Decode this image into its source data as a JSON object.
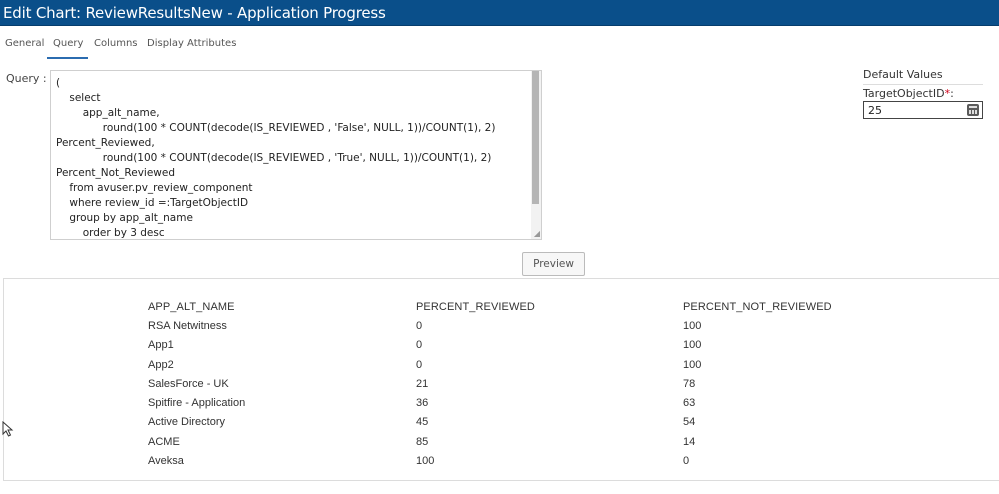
{
  "window": {
    "title": "Edit Chart: ReviewResultsNew - Application Progress"
  },
  "tabs": [
    {
      "label": "General"
    },
    {
      "label": "Query",
      "active": true
    },
    {
      "label": "Columns"
    },
    {
      "label": "Display Attributes"
    }
  ],
  "query": {
    "label": "Query :",
    "text": "(\n    select\n        app_alt_name,\n              round(100 * COUNT(decode(IS_REVIEWED , 'False', NULL, 1))/COUNT(1), 2)\nPercent_Reviewed,\n              round(100 * COUNT(decode(IS_REVIEWED , 'True', NULL, 1))/COUNT(1), 2)\nPercent_Not_Reviewed\n    from avuser.pv_review_component\n    where review_id =:TargetObjectID\n    group by app_alt_name\n        order by 3 desc"
  },
  "defaults": {
    "title": "Default Values",
    "param_label": "TargetObjectID",
    "param_required_mark": "*",
    "param_suffix": ":",
    "param_value": "25"
  },
  "preview_button": "Preview",
  "results": {
    "columns": [
      "APP_ALT_NAME",
      "PERCENT_REVIEWED",
      "PERCENT_NOT_REVIEWED"
    ],
    "rows": [
      [
        "RSA Netwitness",
        "0",
        "100"
      ],
      [
        "App1",
        "0",
        "100"
      ],
      [
        "App2",
        "0",
        "100"
      ],
      [
        "SalesForce - UK",
        "21",
        "78"
      ],
      [
        "Spitfire - Application",
        "36",
        "63"
      ],
      [
        "Active Directory",
        "45",
        "54"
      ],
      [
        "ACME",
        "85",
        "14"
      ],
      [
        "Aveksa",
        "100",
        "0"
      ]
    ]
  },
  "colors": {
    "titlebar": "#0a4f8a",
    "accent": "#2b6cb0",
    "required": "#d0021b"
  }
}
